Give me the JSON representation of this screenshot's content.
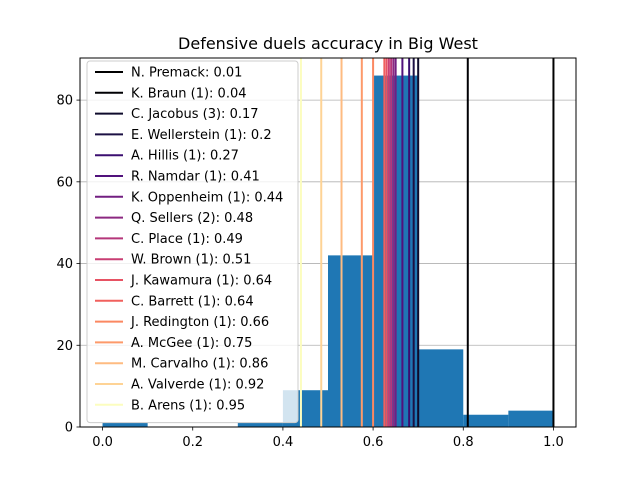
{
  "chart_data": {
    "type": "bar",
    "title": "Defensive duels accuracy in Big West",
    "xlabel": "",
    "ylabel": "",
    "xlim": [
      -0.05,
      1.05
    ],
    "ylim": [
      0,
      90.3
    ],
    "xticks": [
      "0.0",
      "0.2",
      "0.4",
      "0.6",
      "0.8",
      "1.0"
    ],
    "yticks": [
      "0",
      "20",
      "40",
      "60",
      "80"
    ],
    "grid": "y",
    "legend_position": "upper left",
    "bar_color": "#1f77b4",
    "histogram": {
      "bins": [
        {
          "x0": 0.0,
          "x1": 0.1,
          "count": 1
        },
        {
          "x0": 0.1,
          "x1": 0.2,
          "count": 0
        },
        {
          "x0": 0.2,
          "x1": 0.3,
          "count": 0
        },
        {
          "x0": 0.3,
          "x1": 0.4,
          "count": 1
        },
        {
          "x0": 0.4,
          "x1": 0.5,
          "count": 9
        },
        {
          "x0": 0.5,
          "x1": 0.6,
          "count": 42
        },
        {
          "x0": 0.6,
          "x1": 0.7,
          "count": 86
        },
        {
          "x0": 0.7,
          "x1": 0.8,
          "count": 19
        },
        {
          "x0": 0.8,
          "x1": 0.9,
          "count": 3
        },
        {
          "x0": 0.9,
          "x1": 1.0,
          "count": 4
        }
      ]
    },
    "markers": [
      {
        "label": "N. Premack: 0.01",
        "value": 1.0,
        "color": "#000000"
      },
      {
        "label": "K. Braun (1): 0.04",
        "value": 0.81,
        "color": "#000004"
      },
      {
        "label": "C. Jacobus (3): 0.17",
        "value": 0.7,
        "color": "#0f0b2c"
      },
      {
        "label": "E. Wellerstein (1): 0.2",
        "value": 0.69,
        "color": "#1c1044"
      },
      {
        "label": "A. Hillis (1): 0.27",
        "value": 0.68,
        "color": "#3b0f70"
      },
      {
        "label": "R. Namdar (1): 0.41",
        "value": 0.665,
        "color": "#51127c"
      },
      {
        "label": "K. Oppenheim (1): 0.44",
        "value": 0.65,
        "color": "#721f81"
      },
      {
        "label": "Q. Sellers (2): 0.48",
        "value": 0.645,
        "color": "#8c2981"
      },
      {
        "label": "C. Place (1): 0.49",
        "value": 0.64,
        "color": "#b5367a"
      },
      {
        "label": "W. Brown (1): 0.51",
        "value": 0.635,
        "color": "#c83e73"
      },
      {
        "label": "J. Kawamura (1): 0.64",
        "value": 0.63,
        "color": "#e75263"
      },
      {
        "label": "C. Barrett (1): 0.64",
        "value": 0.625,
        "color": "#f1605d"
      },
      {
        "label": "J. Redington (1): 0.66",
        "value": 0.6,
        "color": "#fb8861"
      },
      {
        "label": "A. McGee (1): 0.75",
        "value": 0.575,
        "color": "#fd9a6a"
      },
      {
        "label": "M. Carvalho (1): 0.86",
        "value": 0.53,
        "color": "#febb81"
      },
      {
        "label": "A. Valverde (1): 0.92",
        "value": 0.485,
        "color": "#fed395"
      },
      {
        "label": "B. Arens (1): 0.95",
        "value": 0.44,
        "color": "#fcfdbf"
      }
    ]
  }
}
